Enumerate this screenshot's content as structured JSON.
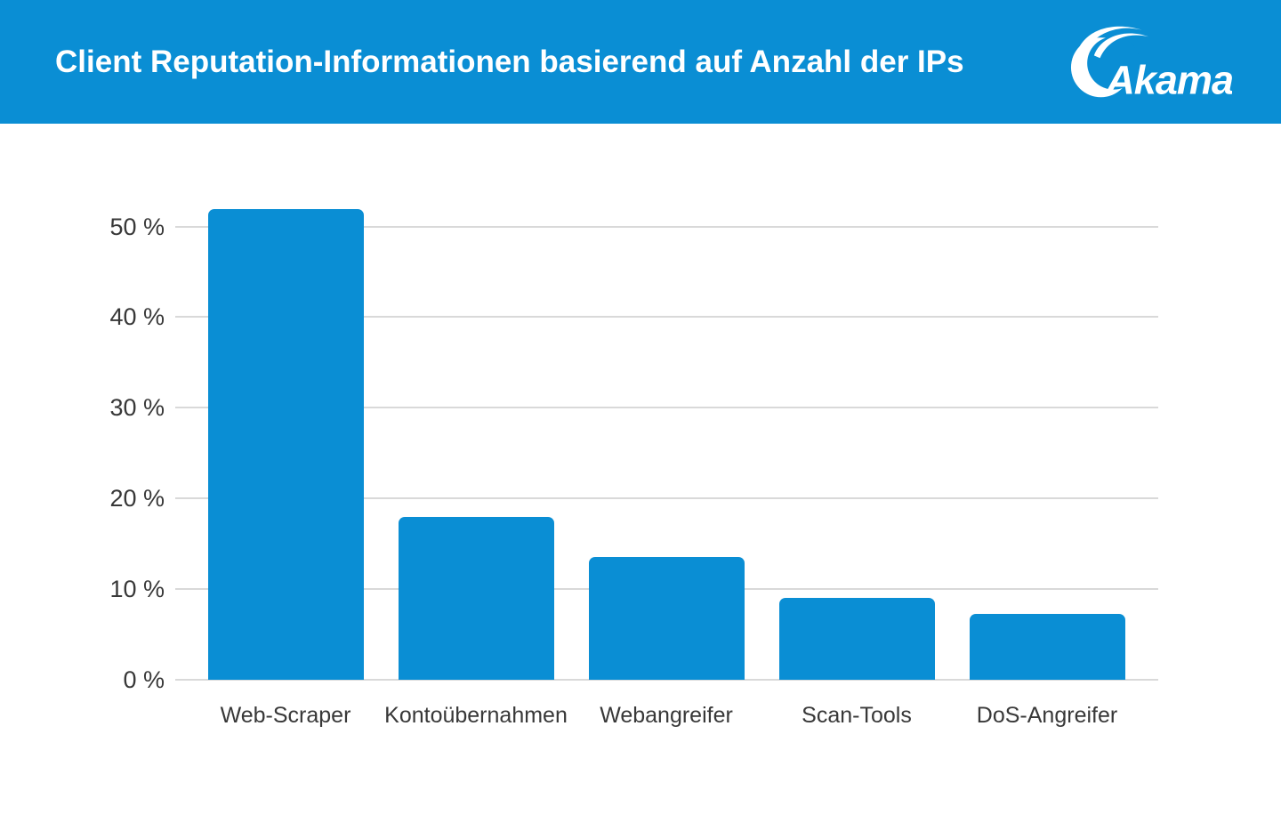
{
  "header": {
    "title": "Client Reputation-Informationen basierend auf Anzahl der IPs",
    "logo_text": "Akamai",
    "background_color": "#0a8ed4",
    "text_color": "#ffffff"
  },
  "chart_data": {
    "type": "bar",
    "title": "Client Reputation-Informationen basierend auf Anzahl der IPs",
    "categories": [
      "Web-Scraper",
      "Kontoübernahmen",
      "Webangreifer",
      "Scan-Tools",
      "DoS-Angreifer"
    ],
    "values": [
      51.9,
      18.0,
      13.5,
      9.0,
      7.3
    ],
    "unit": "%",
    "xlabel": "",
    "ylabel": "",
    "ylim": [
      0,
      55
    ],
    "yticks": [
      0,
      10,
      20,
      30,
      40,
      50
    ],
    "ytick_labels": [
      "0 %",
      "10 %",
      "20 %",
      "30 %",
      "40 %",
      "50 %"
    ],
    "grid": true,
    "legend": false,
    "bar_color": "#0a8ed4",
    "gridline_color": "#d9d9d9",
    "label_color": "#383838"
  }
}
